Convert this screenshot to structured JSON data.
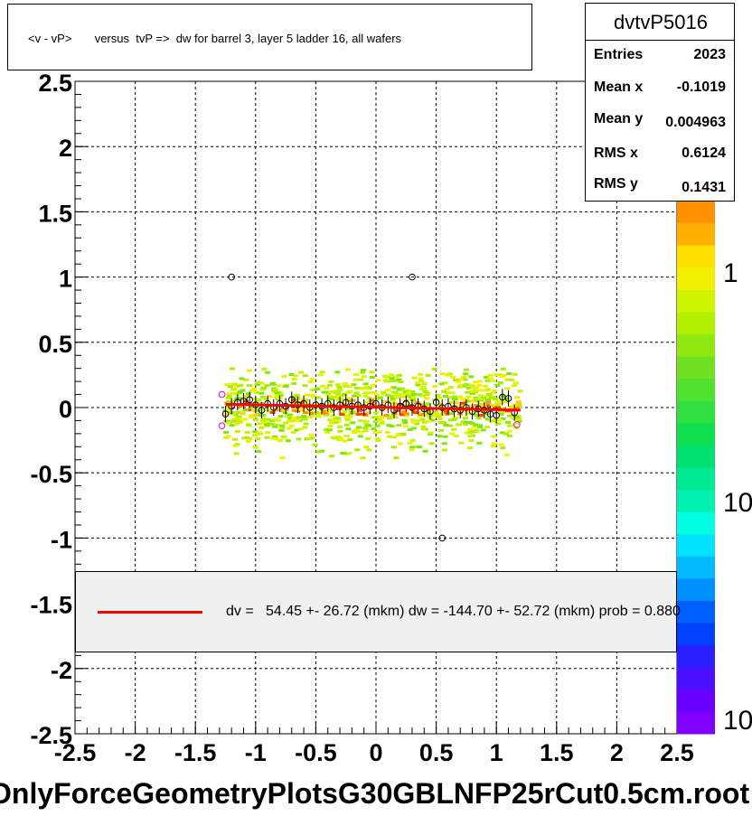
{
  "title": "<v - vP>       versus  tvP =>  dw for barrel 3, layer 5 ladder 16, all wafers",
  "stats": {
    "name": "dvtvP5016",
    "rows": [
      {
        "label": "Entries",
        "value": "2023"
      },
      {
        "label": "Mean x",
        "value": "-0.1019"
      },
      {
        "label": "Mean y",
        "value": "0.004963"
      },
      {
        "label": "RMS x",
        "value": "0.6124"
      },
      {
        "label": "RMS y",
        "value": "0.1431"
      }
    ]
  },
  "legend": {
    "text": "dv =   54.45 +- 26.72 (mkm) dw = -144.70 +- 52.72 (mkm) prob = 0.880",
    "line_color": "#ff0000"
  },
  "footer": "OnlyForceGeometryPlotsG30GBLNFP25rCut0.5cm.root",
  "colorbar": {
    "labels": [
      "1",
      "10",
      "10"
    ]
  },
  "chart_data": {
    "type": "heatmap",
    "xlim": [
      -2.5,
      2.5
    ],
    "ylim": [
      -2.5,
      2.5
    ],
    "x_ticks": [
      "-2.5",
      "-2",
      "-1.5",
      "-1",
      "-0.5",
      "0",
      "0.5",
      "1",
      "1.5",
      "2",
      "2.5"
    ],
    "y_ticks": [
      "2.5",
      "2",
      "1.5",
      "1",
      "0.5",
      "0",
      "-0.5",
      "-1",
      "-1.5",
      "-2",
      "-2.5"
    ],
    "grid": true,
    "band": {
      "x_range": [
        -1.25,
        1.2
      ],
      "y_range": [
        -0.45,
        0.3
      ]
    },
    "profile_points": [
      {
        "x": -1.25,
        "y": -0.05
      },
      {
        "x": -1.2,
        "y": 0.01
      },
      {
        "x": -1.15,
        "y": 0.04
      },
      {
        "x": -1.1,
        "y": 0.05
      },
      {
        "x": -1.05,
        "y": 0.06
      },
      {
        "x": -1.0,
        "y": 0.02
      },
      {
        "x": -0.95,
        "y": -0.02
      },
      {
        "x": -0.9,
        "y": 0.03
      },
      {
        "x": -0.85,
        "y": 0.0
      },
      {
        "x": -0.8,
        "y": 0.03
      },
      {
        "x": -0.75,
        "y": 0.01
      },
      {
        "x": -0.7,
        "y": 0.06
      },
      {
        "x": -0.65,
        "y": 0.02
      },
      {
        "x": -0.6,
        "y": 0.03
      },
      {
        "x": -0.55,
        "y": 0.0
      },
      {
        "x": -0.5,
        "y": 0.02
      },
      {
        "x": -0.45,
        "y": 0.01
      },
      {
        "x": -0.4,
        "y": 0.03
      },
      {
        "x": -0.35,
        "y": 0.0
      },
      {
        "x": -0.3,
        "y": 0.02
      },
      {
        "x": -0.25,
        "y": 0.04
      },
      {
        "x": -0.2,
        "y": 0.01
      },
      {
        "x": -0.15,
        "y": 0.02
      },
      {
        "x": -0.1,
        "y": 0.0
      },
      {
        "x": -0.05,
        "y": 0.01
      },
      {
        "x": 0.0,
        "y": 0.03
      },
      {
        "x": 0.05,
        "y": 0.0
      },
      {
        "x": 0.1,
        "y": 0.02
      },
      {
        "x": 0.15,
        "y": -0.02
      },
      {
        "x": 0.2,
        "y": 0.01
      },
      {
        "x": 0.25,
        "y": 0.03
      },
      {
        "x": 0.3,
        "y": 0.0
      },
      {
        "x": 0.35,
        "y": 0.01
      },
      {
        "x": 0.4,
        "y": -0.01
      },
      {
        "x": 0.45,
        "y": -0.03
      },
      {
        "x": 0.5,
        "y": 0.04
      },
      {
        "x": 0.55,
        "y": 0.0
      },
      {
        "x": 0.6,
        "y": 0.01
      },
      {
        "x": 0.65,
        "y": -0.01
      },
      {
        "x": 0.7,
        "y": -0.02
      },
      {
        "x": 0.75,
        "y": 0.0
      },
      {
        "x": 0.8,
        "y": -0.03
      },
      {
        "x": 0.85,
        "y": -0.01
      },
      {
        "x": 0.9,
        "y": -0.02
      },
      {
        "x": 0.95,
        "y": -0.05
      },
      {
        "x": 1.0,
        "y": -0.06
      },
      {
        "x": 1.05,
        "y": 0.08
      },
      {
        "x": 1.1,
        "y": 0.07
      },
      {
        "x": 1.15,
        "y": -0.04
      }
    ],
    "outliers": [
      {
        "x": -1.2,
        "y": 1.0
      },
      {
        "x": 0.3,
        "y": 1.0
      },
      {
        "x": 0.55,
        "y": -1.0
      }
    ],
    "magenta_points": [
      {
        "x": -1.28,
        "y": 0.1
      },
      {
        "x": -1.28,
        "y": -0.14
      },
      {
        "x": 1.17,
        "y": -0.13
      }
    ],
    "fit_line": {
      "x": [
        -1.25,
        1.2
      ],
      "y": [
        0.025,
        -0.02
      ],
      "color": "#ff0000"
    }
  }
}
